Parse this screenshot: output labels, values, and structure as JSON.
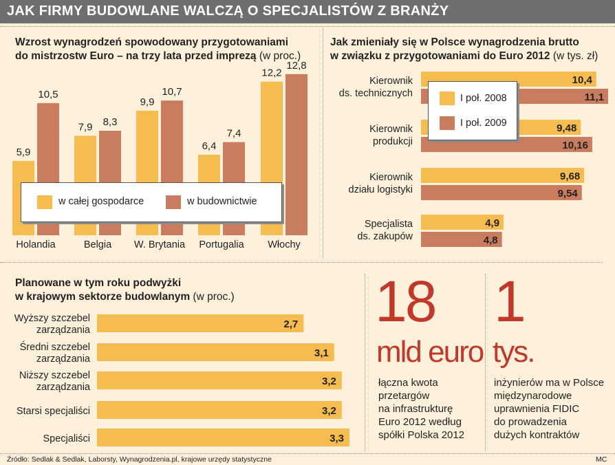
{
  "title": "JAK FIRMY BUDOWLANE WALCZĄ O SPECJALISTÓW Z BRANŻY",
  "colors": {
    "yellow": "#f7bc50",
    "brick": "#c97d5e",
    "red": "#c0392b",
    "gray": "#6e6f71"
  },
  "chart_data": [
    {
      "type": "bar",
      "title_line1": "Wzrost wynagrodzeń spowodowany przygotowaniami",
      "title_line2": "do mistrzostw Euro – na trzy lata przed imprezą",
      "unit": "(w proc.)",
      "categories": [
        "Holandia",
        "Belgia",
        "W. Brytania",
        "Portugalia",
        "Włochy"
      ],
      "series": [
        {
          "name": "w całej gospodarce",
          "values": [
            5.9,
            7.9,
            9.9,
            6.4,
            12.2
          ],
          "labels": [
            "5,9",
            "7,9",
            "9,9",
            "6,4",
            "12,2"
          ]
        },
        {
          "name": "w budownictwie",
          "values": [
            10.5,
            8.3,
            10.7,
            7.4,
            12.8
          ],
          "labels": [
            "10,5",
            "8,3",
            "10,7",
            "7,4",
            "12,8"
          ]
        }
      ],
      "ylim": [
        0,
        14
      ]
    },
    {
      "type": "bar",
      "orientation": "horizontal",
      "title_line1": "Jak zmieniały się w Polsce wynagrodzenia brutto",
      "title_line2": "w związku z przygotowaniami do Euro 2012",
      "unit": "(w tys. zł)",
      "categories": [
        {
          "line1": "Kierownik",
          "line2": "ds. technicznych"
        },
        {
          "line1": "Kierownik",
          "line2": "produkcji"
        },
        {
          "line1": "Kierownik",
          "line2": "działu logistyki"
        },
        {
          "line1": "Specjalista",
          "line2": "ds. zakupów"
        }
      ],
      "series": [
        {
          "name": "I poł. 2008",
          "values": [
            10.4,
            9.48,
            9.68,
            4.9
          ],
          "labels": [
            "10,4",
            "9,48",
            "9,68",
            "4,9"
          ]
        },
        {
          "name": "I poł. 2009",
          "values": [
            11.1,
            10.16,
            9.54,
            4.8
          ],
          "labels": [
            "11,1",
            "10,16",
            "9,54",
            "4,8"
          ]
        }
      ],
      "xlim": [
        0,
        11.1
      ]
    },
    {
      "type": "bar",
      "orientation": "horizontal",
      "title_line1": "Planowane w tym roku podwyżki",
      "title_line2": "w krajowym sektorze budowlanym",
      "unit": "(w proc.)",
      "categories": [
        {
          "line1": "Wyższy szczebel",
          "line2": "zarządzania"
        },
        {
          "line1": "Średni szczebel",
          "line2": "zarządzania"
        },
        {
          "line1": "Niższy szczebel",
          "line2": "zarządzania"
        },
        {
          "line1": "Starsi specjaliści",
          "line2": ""
        },
        {
          "line1": "Specjaliści",
          "line2": ""
        }
      ],
      "values": [
        2.7,
        3.1,
        3.2,
        3.2,
        3.3
      ],
      "labels": [
        "2,7",
        "3,1",
        "3,2",
        "3,2",
        "3,3"
      ],
      "xlim": [
        0,
        3.3
      ]
    }
  ],
  "fact1": {
    "number": "18",
    "unit": "mld euro",
    "lines": [
      "łączna kwota",
      "przetargów",
      "na infrastrukturę",
      "Euro 2012 według",
      "spółki Polska 2012"
    ]
  },
  "fact2": {
    "number": "1",
    "unit": "tys.",
    "lines": [
      "inżynierów ma w Polsce",
      "międzynarodowe",
      "uprawnienia FIDIC",
      "do prowadzenia",
      "dużych kontraktów"
    ]
  },
  "footer": {
    "source": "Źródło: Sedlak & Sedlak, Laborsty, Wynagrodzenia.pl, krajowe urzędy statystyczne",
    "author": "MC"
  }
}
